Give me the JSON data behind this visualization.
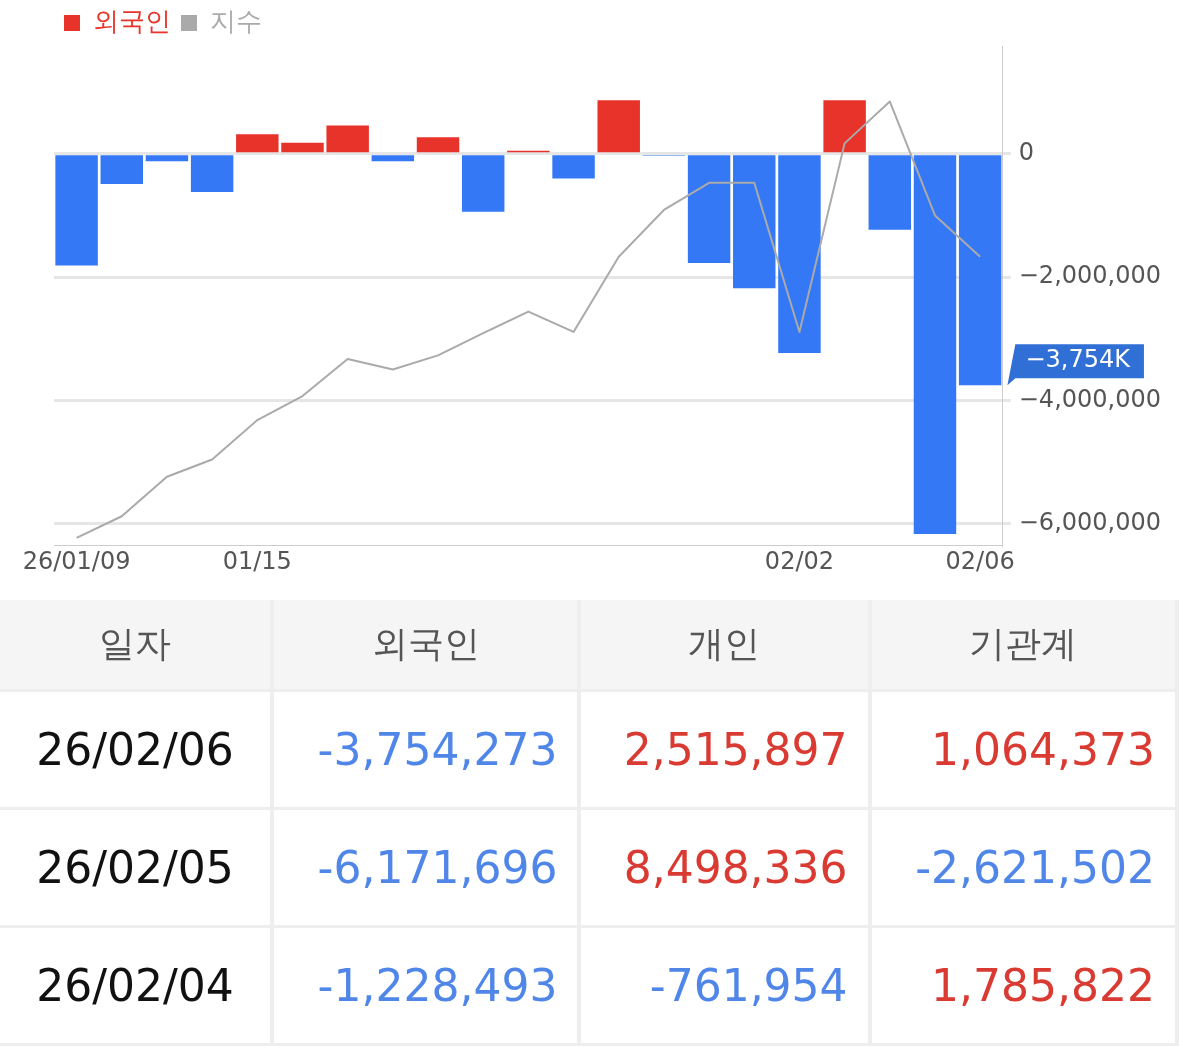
{
  "chart_data": [
    {
      "type": "bar",
      "categories": [
        "26/01/09",
        null,
        null,
        null,
        "01/15",
        null,
        null,
        null,
        null,
        null,
        null,
        null,
        null,
        null,
        null,
        null,
        "02/02",
        null,
        null,
        null,
        "02/06"
      ],
      "series": [
        {
          "name": "외국인",
          "type": "bar",
          "color": "#e8332a",
          "colors": [
            "#3478f6",
            "#3478f6",
            "#3478f6",
            "#3478f6",
            "#e8332a",
            "#e8332a",
            "#e8332a",
            "#3478f6",
            "#e8332a",
            "#3478f6",
            "#e8332a",
            "#3478f6",
            "#e8332a",
            "#3478f6",
            "#3478f6",
            "#3478f6",
            "#3478f6",
            "#e8332a",
            "#3478f6",
            "#3478f6",
            "#3478f6"
          ],
          "values": [
            -1810000,
            -490000,
            -120000,
            -620000,
            320000,
            180000,
            460000,
            -120000,
            270000,
            -940000,
            50000,
            -400000,
            870000,
            -30000,
            -1770000,
            -2180000,
            -3230000,
            870000,
            -1230000,
            -6170000,
            -3754000
          ]
        },
        {
          "name": "지수",
          "type": "line",
          "color": "#aaaaaa",
          "values": [
            -6230000,
            -5880000,
            -5240000,
            -4960000,
            -4320000,
            -3930000,
            -3330000,
            -3500000,
            -3270000,
            -2910000,
            -2560000,
            -2890000,
            -1670000,
            -910000,
            -470000,
            -470000,
            -2890000,
            170000,
            850000,
            -1000000,
            -1670000
          ]
        }
      ],
      "ylim": [
        -6350000,
        1750000
      ],
      "yticks": [
        {
          "value": 0,
          "label": "0"
        },
        {
          "value": -2000000,
          "label": "−2,000,000"
        },
        {
          "value": -4000000,
          "label": "−4,000,000"
        },
        {
          "value": -6000000,
          "label": "−6,000,000"
        }
      ],
      "grid": "y",
      "legend": "top left",
      "marker": "none",
      "annotations": [
        {
          "text": "−3,754K",
          "x": "02/06",
          "y": -3754000
        }
      ]
    },
    {
      "type": "other",
      "ylabel": "일자",
      "categories": [
        "외국인",
        "개인",
        "기관계"
      ],
      "y_categories": [
        "26/02/06",
        "26/02/05",
        "26/02/04"
      ],
      "colors": [
        [
          "#4f86e8",
          "#d93a32",
          "#d93a32"
        ],
        [
          "#4f86e8",
          "#d93a32",
          "#4f86e8"
        ],
        [
          "#4f86e8",
          "#4f86e8",
          "#d93a32"
        ]
      ],
      "cell_labels": [
        [
          "-3,754,273",
          "2,515,897",
          "1,064,373"
        ],
        [
          "-6,171,696",
          "8,498,336",
          "-2,621,502"
        ],
        [
          "-1,228,493",
          "-761,954",
          "1,785,822"
        ]
      ]
    }
  ]
}
